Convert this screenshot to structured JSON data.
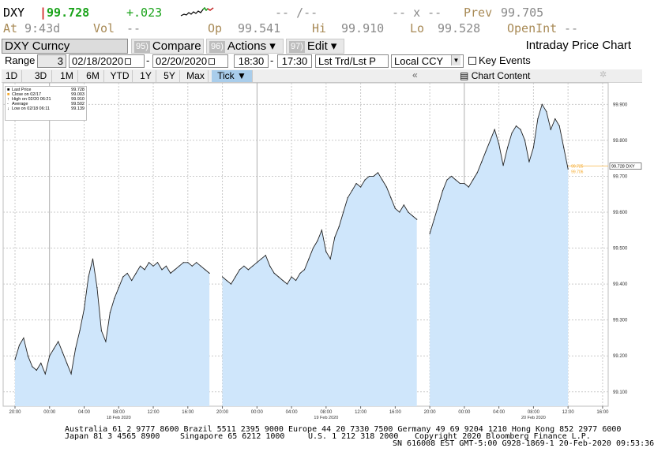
{
  "quote": {
    "ticker": "DXY",
    "last_price": "99.728",
    "change": "+.023",
    "bid_ask_placeholder": "-- /--",
    "size_placeholder": "-- x --",
    "prev_label": "Prev",
    "prev_value": "99.705",
    "time_label": "At",
    "time_value": "9:43d",
    "vol_label": "Vol",
    "vol_value": "--",
    "open_label": "Op",
    "open_value": "99.541",
    "high_label": "Hi",
    "high_value": "99.910",
    "low_label": "Lo",
    "low_value": "99.528",
    "openint_label": "OpenInt",
    "openint_value": "--"
  },
  "toolbar": {
    "security": "DXY Curncy",
    "compare_num": "95)",
    "compare_label": "Compare",
    "actions_num": "96)",
    "actions_label": "Actions ▾",
    "edit_num": "97)",
    "edit_label": "Edit ▾",
    "title": "Intraday Price Chart"
  },
  "range": {
    "label": "Range",
    "days": "3",
    "start_date": "02/18/2020",
    "dash1": "-",
    "end_date": "02/20/2020",
    "start_time": "18:30",
    "dash2": "-",
    "end_time": "17:30",
    "trade_type": "Lst Trd/Lst P",
    "currency": "Local CCY",
    "key_events_label": "Key Events"
  },
  "tabs": [
    "1D",
    "3D",
    "1M",
    "6M",
    "YTD",
    "1Y",
    "5Y",
    "Max",
    "Tick ▼"
  ],
  "tab_chevron": "«",
  "chart_content_label": "Chart Content",
  "legend": {
    "rows": [
      {
        "label": "Last Price",
        "value": "99.728"
      },
      {
        "label": "Close on 02/17",
        "value": "99.003"
      },
      {
        "label": "High on 02/20 06:21",
        "value": "99.910"
      },
      {
        "label": "Average",
        "value": "99.502"
      },
      {
        "label": "Low on 02/18 06:11",
        "value": "99.139"
      }
    ]
  },
  "colors": {
    "area_fill": "#cfe6fb",
    "line": "#222222",
    "grid": "#c9c9c9",
    "session_divider": "#9a9a9a",
    "last_price_marker": "#f5a623",
    "active_tab": "#a9cdeb",
    "change_green": "#1aa31a",
    "ticker_red": "#d22020"
  },
  "chart_data": {
    "type": "area",
    "title": "",
    "xlabel": "",
    "ylabel": "",
    "ylim": [
      99.06,
      99.96
    ],
    "y_ticks": [
      "99.100",
      "99.200",
      "99.300",
      "99.400",
      "99.500",
      "99.600",
      "99.700",
      "99.800",
      "99.900"
    ],
    "x_tick_labels": [
      "20:00",
      "00:00",
      "04:00",
      "08:00",
      "12:00",
      "16:00",
      "20:00",
      "00:00",
      "04:00",
      "08:00",
      "12:00",
      "16:00",
      "20:00",
      "00:00",
      "04:00",
      "08:00",
      "12:00",
      "16:00"
    ],
    "date_labels": [
      "18 Feb 2020",
      "19 Feb 2020",
      "20 Feb 2020"
    ],
    "last_price_label": "99.728 DXY",
    "marker_labels": [
      "99.725",
      "99.706"
    ],
    "series": [
      {
        "x": [
          0.0,
          0.5,
          1.0,
          1.5,
          2.0,
          2.5,
          3.0,
          3.5,
          4.0,
          4.5,
          5.0,
          5.5,
          6.0,
          6.5,
          7.0,
          7.5,
          8.0,
          8.5,
          9.0,
          9.5,
          10.0,
          10.5,
          11.0,
          11.5,
          12.0,
          12.5,
          13.0,
          13.5,
          14.0,
          14.5,
          15.0,
          15.5,
          16.0,
          16.5,
          17.0,
          17.5,
          18.0,
          18.5,
          19.0,
          19.5,
          20.0,
          20.5,
          21.0,
          21.5,
          22.0,
          22.5
        ],
        "y": [
          99.19,
          99.23,
          99.25,
          99.2,
          99.17,
          99.16,
          99.18,
          99.15,
          99.2,
          99.22,
          99.24,
          99.21,
          99.18,
          99.15,
          99.22,
          99.27,
          99.33,
          99.42,
          99.47,
          99.39,
          99.27,
          99.24,
          99.32,
          99.36,
          99.39,
          99.42,
          99.43,
          99.41,
          99.43,
          99.45,
          99.44,
          99.46,
          99.45,
          99.46,
          99.44,
          99.45,
          99.43,
          99.44,
          99.45,
          99.46,
          99.46,
          99.45,
          99.46,
          99.45,
          99.44,
          99.43
        ]
      },
      {
        "x": [
          24.0,
          24.5,
          25.0,
          25.5,
          26.0,
          26.5,
          27.0,
          27.5,
          28.0,
          28.5,
          29.0,
          29.5,
          30.0,
          30.5,
          31.0,
          31.5,
          32.0,
          32.5,
          33.0,
          33.5,
          34.0,
          34.5,
          35.0,
          35.5,
          36.0,
          36.5,
          37.0,
          37.5,
          38.0,
          38.5,
          39.0,
          39.5,
          40.0,
          40.5,
          41.0,
          41.5,
          42.0,
          42.5,
          43.0,
          43.5,
          44.0,
          44.5,
          45.0,
          45.5,
          46.0,
          46.5
        ],
        "y": [
          99.42,
          99.41,
          99.4,
          99.42,
          99.44,
          99.45,
          99.44,
          99.45,
          99.46,
          99.47,
          99.48,
          99.45,
          99.43,
          99.42,
          99.41,
          99.4,
          99.42,
          99.41,
          99.43,
          99.44,
          99.47,
          99.5,
          99.52,
          99.55,
          99.49,
          99.47,
          99.53,
          99.56,
          99.6,
          99.64,
          99.66,
          99.68,
          99.67,
          99.69,
          99.7,
          99.7,
          99.71,
          99.69,
          99.67,
          99.64,
          99.61,
          99.6,
          99.62,
          99.6,
          99.59,
          99.58
        ]
      },
      {
        "x": [
          48.0,
          48.5,
          49.0,
          49.5,
          50.0,
          50.5,
          51.0,
          51.5,
          52.0,
          52.5,
          53.0,
          53.5,
          54.0,
          54.5,
          55.0,
          55.5,
          56.0,
          56.5,
          57.0,
          57.5,
          58.0,
          58.5,
          59.0,
          59.5,
          60.0,
          60.5,
          61.0,
          61.5,
          62.0,
          62.5,
          63.0,
          63.5,
          64.0
        ],
        "y": [
          99.54,
          99.58,
          99.62,
          99.66,
          99.69,
          99.7,
          99.69,
          99.68,
          99.68,
          99.67,
          99.69,
          99.71,
          99.74,
          99.77,
          99.8,
          99.83,
          99.79,
          99.73,
          99.78,
          99.82,
          99.84,
          99.83,
          99.8,
          99.74,
          99.78,
          99.86,
          99.9,
          99.88,
          99.83,
          99.86,
          99.84,
          99.78,
          99.72
        ]
      }
    ]
  },
  "footer": {
    "line1": "Australia 61 2 9777 8600 Brazil 5511 2395 9000 Europe 44 20 7330 7500 Germany 49 69 9204 1210 Hong Kong 852 2977 6000",
    "line2_left": "Japan 81 3 4565 8900",
    "line2_mid": "Singapore 65 6212 1000",
    "line2_us": "U.S. 1 212 318 2000",
    "line2_right": "Copyright 2020 Bloomberg Finance L.P.",
    "line3": "SN 616008 EST  GMT-5:00 G928-1869-1 20-Feb-2020 09:53:36"
  }
}
